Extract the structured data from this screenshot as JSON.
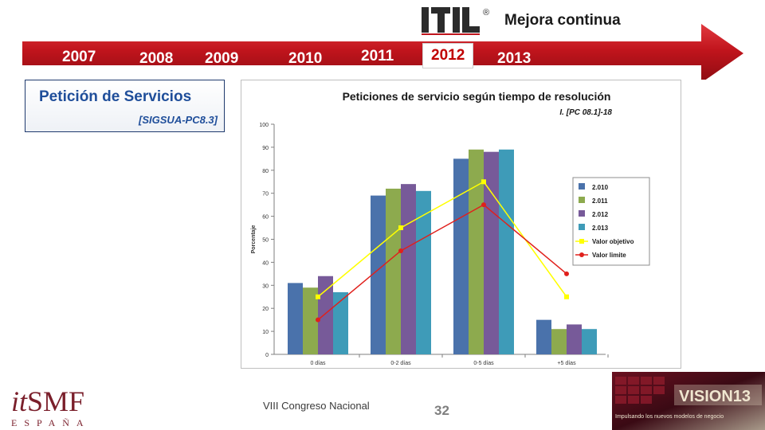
{
  "header": {
    "brand": "ITIL",
    "registered_mark": "®",
    "title": "Mejora continua"
  },
  "timeline": {
    "years": [
      "2007",
      "2008",
      "2009",
      "2010",
      "2011",
      "2012",
      "2013"
    ],
    "active_year": "2012",
    "bar_color": "#c0141c"
  },
  "section": {
    "title": "Petición de Servicios",
    "code": "[SIGSUA-PC8.3]"
  },
  "chart_data": {
    "type": "bar",
    "title": "Peticiones de servicio según tiempo de resolución",
    "subtitle": "I. [PC 08.1]-18",
    "ylabel": "Porcentaje",
    "xlabel": "",
    "ylim": [
      0,
      100
    ],
    "yticks": [
      0,
      10,
      20,
      30,
      40,
      50,
      60,
      70,
      80,
      90,
      100
    ],
    "categories": [
      "0 días",
      "0-2 días",
      "0-5 días",
      "+5 días"
    ],
    "series": [
      {
        "name": "2.010",
        "kind": "bar",
        "color": "#4a72ab",
        "values": [
          31,
          69,
          85,
          15
        ]
      },
      {
        "name": "2.011",
        "kind": "bar",
        "color": "#8daa4e",
        "values": [
          29,
          72,
          89,
          11
        ]
      },
      {
        "name": "2.012",
        "kind": "bar",
        "color": "#775a99",
        "values": [
          34,
          74,
          88,
          13
        ]
      },
      {
        "name": "2.013",
        "kind": "bar",
        "color": "#3e9bb8",
        "values": [
          27,
          71,
          89,
          11
        ]
      },
      {
        "name": "Valor objetivo",
        "kind": "line",
        "color": "#ffff00",
        "values": [
          25,
          55,
          75,
          25
        ]
      },
      {
        "name": "Valor limite",
        "kind": "line",
        "color": "#e0201c",
        "values": [
          15,
          45,
          65,
          35
        ]
      }
    ],
    "grid": false,
    "legend_position": "right"
  },
  "footer": {
    "logo_prefix": "it",
    "logo_suffix": "SMF",
    "logo_subtext": "ESPAÑA",
    "event": "VIII Congreso Nacional",
    "page_number": "32",
    "banner_title": "VISION13",
    "banner_subtitle": "Impulsando los nuevos modelos de negocio"
  }
}
